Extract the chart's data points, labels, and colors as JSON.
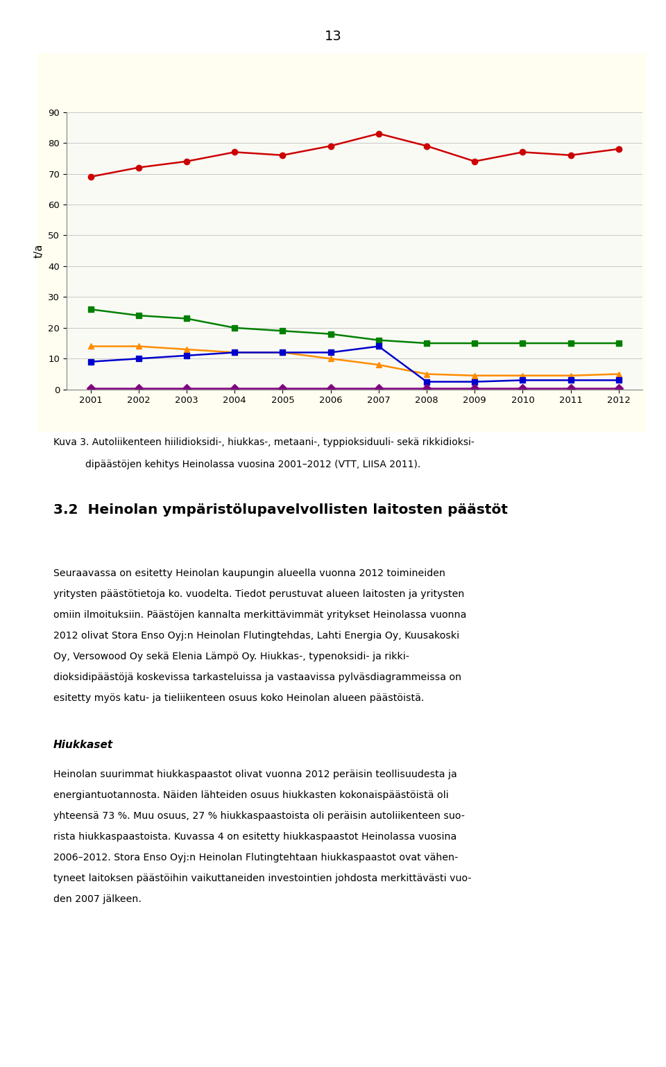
{
  "years": [
    2001,
    2002,
    2003,
    2004,
    2005,
    2006,
    2007,
    2008,
    2009,
    2010,
    2011,
    2012
  ],
  "hiukkaset": [
    26,
    24,
    23,
    20,
    19,
    18,
    16,
    15,
    15,
    15,
    15,
    15
  ],
  "metaani": [
    14,
    14,
    13,
    12,
    12,
    10,
    8,
    5,
    4.5,
    4.5,
    4.5,
    5
  ],
  "typpioksiduuli": [
    9,
    10,
    11,
    12,
    12,
    12,
    14,
    2.5,
    2.5,
    3,
    3,
    3
  ],
  "rikkidioksidi": [
    0.3,
    0.3,
    0.3,
    0.3,
    0.3,
    0.3,
    0.3,
    0.3,
    0.3,
    0.3,
    0.3,
    0.3
  ],
  "hiilidioksidi": [
    69,
    72,
    74,
    77,
    76,
    79,
    83,
    79,
    74,
    77,
    76,
    78
  ],
  "color_hiukkaset": "#008000",
  "color_metaani": "#FF8C00",
  "color_typpioksiduuli": "#0000CD",
  "color_rikkidioksidi": "#800080",
  "color_hiilidioksidi": "#CC0000",
  "ylim": [
    0,
    90
  ],
  "yticks": [
    0,
    10,
    20,
    30,
    40,
    50,
    60,
    70,
    80,
    90
  ],
  "ylabel": "t/a",
  "page_number": "13",
  "chart_bg": "#FFFEF0",
  "caption_line1": "Kuva 3. Autoliikenteen hiilidioksidi-, hiukkas-, metaani-, typpioksiduuli- sekä rikkidioksi-",
  "caption_line2": "dipäästöjen kehitys Heinolassa vuosina 2001–2012 (VTT, LIISA 2011).",
  "section_heading": "3.2  Heinolan ympäristölupavelvollisten laitosten päästöt",
  "para1_lines": [
    "Seuraavassa on esitetty Heinolan kaupungin alueella vuonna 2012 toimineiden",
    "yritysten päästötietoja ko. vuodelta. Tiedot perustuvat alueen laitosten ja yritysten",
    "omiin ilmoituksiin. Päästöjen kannalta merkittävimmät yritykset Heinolassa vuonna",
    "2012 olivat Stora Enso Oyj:n Heinolan Flutingtehdas, Lahti Energia Oy, Kuusakoski",
    "Oy, Versowood Oy sekä Elenia Lämpö Oy. Hiukkas-, typenoksidi- ja rikki-",
    "dioksidipäästöjä koskevissa tarkasteluissa ja vastaavissa pylväsdiagrammeissa on",
    "esitetty myös katu- ja tieliikenteen osuus koko Heinolan alueen päästöistä."
  ],
  "subheading": "Hiukkaset",
  "para2_lines": [
    "Heinolan suurimmat hiukkaspaastot olivat vuonna 2012 peräisin teollisuudesta ja",
    "energiantuotannosta. Näiden lähteiden osuus hiukkasten kokonaispäästöistä oli",
    "yhteensä 73 %. Muu osuus, 27 % hiukkaspaastoista oli peräisin autoliikenteen suo-",
    "rista hiukkaspaastoista. Kuvassa 4 on esitetty hiukkaspaastot Heinolassa vuosina",
    "2006–2012. Stora Enso Oyj:n Heinolan Flutingtehtaan hiukkaspaastot ovat vähen-",
    "tyneet laitoksen päästöihin vaikuttaneiden investointien johdosta merkittävästi vuo-",
    "den 2007 jälkeen."
  ]
}
